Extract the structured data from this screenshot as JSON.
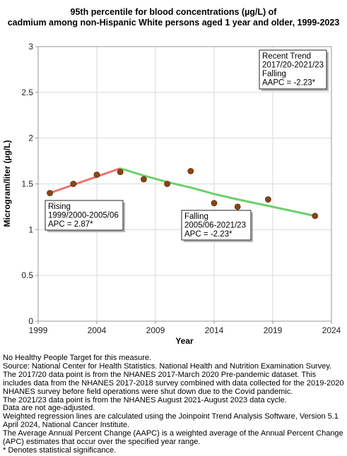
{
  "chart_data": {
    "type": "line",
    "title_lines": [
      "95th percentile for blood concentrations (µg/L) of",
      "cadmium among non-Hispanic White persons aged 1 year and older, 1999-2023"
    ],
    "xlabel": "Year",
    "ylabel": "Microgram/liter (µg/L)",
    "xlim": [
      1999,
      2024
    ],
    "ylim": [
      0,
      3
    ],
    "x_ticks": [
      1999,
      2004,
      2009,
      2014,
      2019,
      2024
    ],
    "y_ticks": [
      0,
      0.5,
      1,
      1.5,
      2,
      2.5,
      3
    ],
    "y_tick_labels": [
      "0",
      "0.5",
      "1",
      "1.5",
      "2",
      "2.5",
      "3"
    ],
    "grid": true,
    "points": [
      {
        "x": 2000,
        "y": 1.4
      },
      {
        "x": 2002,
        "y": 1.5
      },
      {
        "x": 2004,
        "y": 1.6
      },
      {
        "x": 2006,
        "y": 1.63
      },
      {
        "x": 2008,
        "y": 1.55
      },
      {
        "x": 2010,
        "y": 1.5
      },
      {
        "x": 2012,
        "y": 1.64
      },
      {
        "x": 2014,
        "y": 1.29
      },
      {
        "x": 2016,
        "y": 1.25
      },
      {
        "x": 2018.6,
        "y": 1.33
      },
      {
        "x": 2022.6,
        "y": 1.15
      }
    ],
    "segments": [
      {
        "name": "Rising",
        "color": "#f07070",
        "x": [
          2000,
          2006
        ],
        "y": [
          1.4,
          1.67
        ]
      },
      {
        "name": "Falling",
        "color": "#6ccf6c",
        "x": [
          2006,
          2008,
          2010,
          2012,
          2014,
          2016,
          2018.6,
          2022.6
        ],
        "y": [
          1.67,
          1.59,
          1.52,
          1.46,
          1.39,
          1.33,
          1.26,
          1.15
        ]
      }
    ],
    "marker_color": "#8b4513",
    "annotations": [
      {
        "lines": [
          "Rising",
          "1999/2000-2005/06",
          "APC =  2.87*"
        ]
      },
      {
        "lines": [
          "Falling",
          "2005/06-2021/23",
          "APC = -2.23*"
        ]
      },
      {
        "lines": [
          "Recent Trend",
          "2017/20-2021/23",
          "Falling",
          "AAPC = -2.23*"
        ]
      }
    ]
  },
  "footnotes": [
    "No Healthy People Target for this measure.",
    "Source: National Center for Health Statistics. National Health and Nutrition Examination Survey.",
    "The 2017/20 data point is from the NHANES 2017-March 2020 Pre-pandemic dataset. This includes data from the NHANES 2017-2018 survey combined with data collected for the 2019-2020 NHANES survey before field operations were shut down due to the Covid pandemic.",
    "The 2021/23 data point is from the NHANES August 2021-August 2023 data cycle.",
    "Data are not age-adjusted.",
    "Weighted regression lines are calculated using the Joinpoint Trend Analysis Software, Version 5.1 April 2024, National Cancer Institute.",
    "The Average Annual Percent Change (AAPC) is a weighted average of the Annual Percent Change (APC) estimates that occur over the specified year range.",
    "* Denotes statistical significance."
  ]
}
